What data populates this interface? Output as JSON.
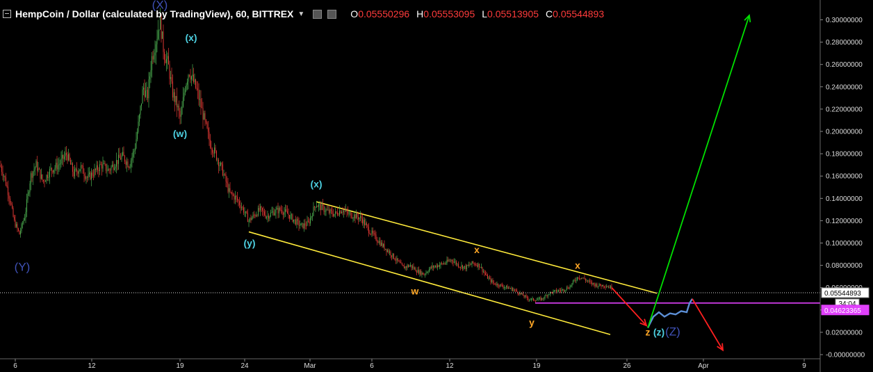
{
  "header": {
    "title": "HempCoin / Dollar (calculated by TradingView), 60, BITTREX",
    "ohlc": [
      {
        "k": "O",
        "v": "0.05550296"
      },
      {
        "k": "H",
        "v": "0.05553095"
      },
      {
        "k": "L",
        "v": "0.05513905"
      },
      {
        "k": "C",
        "v": "0.05544893"
      }
    ]
  },
  "colors": {
    "background": "#000000",
    "up": "#4caf50",
    "down": "#e53935",
    "channel": "#ffeb3b",
    "wave_label_cyan": "#4dd0e1",
    "wave_label_orange": "#ffa726",
    "wave_label_blue": "#3f51b5",
    "projection_up": "#00e000",
    "projection_down": "#ff2020",
    "support_line": "#e040fb",
    "price_path": "#5c8fd6"
  },
  "chart_data": {
    "type": "candlestick",
    "title": "HempCoin / Dollar (calculated by TradingView), 60, BITTREX",
    "y_range": [
      0.0,
      0.31
    ],
    "x_ticks": [
      "6",
      "12",
      "19",
      "24",
      "Mar",
      "6",
      "12",
      "19",
      "26",
      "Apr",
      "9"
    ],
    "y_ticks": [
      "0.30000000",
      "0.28000000",
      "0.26000000",
      "0.24000000",
      "0.22000000",
      "0.20000000",
      "0.18000000",
      "0.16000000",
      "0.14000000",
      "0.12000000",
      "0.10000000",
      "0.08000000",
      "0.06000000",
      "0.04000000",
      "0.02000000",
      "-0.00000000"
    ],
    "price_path": [
      [
        0,
        0.17
      ],
      [
        6,
        0.16
      ],
      [
        14,
        0.14
      ],
      [
        20,
        0.12
      ],
      [
        28,
        0.108
      ],
      [
        36,
        0.125
      ],
      [
        44,
        0.16
      ],
      [
        52,
        0.17
      ],
      [
        62,
        0.155
      ],
      [
        72,
        0.165
      ],
      [
        84,
        0.17
      ],
      [
        96,
        0.18
      ],
      [
        106,
        0.162
      ],
      [
        116,
        0.168
      ],
      [
        126,
        0.158
      ],
      [
        136,
        0.164
      ],
      [
        146,
        0.17
      ],
      [
        156,
        0.165
      ],
      [
        166,
        0.172
      ],
      [
        176,
        0.178
      ],
      [
        186,
        0.17
      ],
      [
        194,
        0.185
      ],
      [
        200,
        0.21
      ],
      [
        206,
        0.24
      ],
      [
        212,
        0.23
      ],
      [
        218,
        0.265
      ],
      [
        224,
        0.28
      ],
      [
        230,
        0.3
      ],
      [
        236,
        0.27
      ],
      [
        242,
        0.26
      ],
      [
        248,
        0.235
      ],
      [
        254,
        0.225
      ],
      [
        260,
        0.21
      ],
      [
        266,
        0.24
      ],
      [
        272,
        0.255
      ],
      [
        278,
        0.245
      ],
      [
        284,
        0.235
      ],
      [
        290,
        0.22
      ],
      [
        296,
        0.205
      ],
      [
        302,
        0.19
      ],
      [
        310,
        0.18
      ],
      [
        320,
        0.165
      ],
      [
        330,
        0.145
      ],
      [
        340,
        0.14
      ],
      [
        350,
        0.13
      ],
      [
        358,
        0.12
      ],
      [
        366,
        0.125
      ],
      [
        374,
        0.13
      ],
      [
        384,
        0.124
      ],
      [
        394,
        0.128
      ],
      [
        404,
        0.13
      ],
      [
        414,
        0.126
      ],
      [
        424,
        0.12
      ],
      [
        434,
        0.115
      ],
      [
        444,
        0.118
      ],
      [
        454,
        0.135
      ],
      [
        462,
        0.132
      ],
      [
        472,
        0.128
      ],
      [
        482,
        0.126
      ],
      [
        492,
        0.13
      ],
      [
        502,
        0.126
      ],
      [
        512,
        0.124
      ],
      [
        520,
        0.122
      ],
      [
        530,
        0.112
      ],
      [
        540,
        0.105
      ],
      [
        550,
        0.098
      ],
      [
        560,
        0.092
      ],
      [
        570,
        0.085
      ],
      [
        580,
        0.078
      ],
      [
        590,
        0.08
      ],
      [
        600,
        0.075
      ],
      [
        610,
        0.072
      ],
      [
        620,
        0.078
      ],
      [
        630,
        0.08
      ],
      [
        640,
        0.082
      ],
      [
        650,
        0.085
      ],
      [
        660,
        0.08
      ],
      [
        670,
        0.078
      ],
      [
        680,
        0.082
      ],
      [
        690,
        0.08
      ],
      [
        700,
        0.07
      ],
      [
        710,
        0.064
      ],
      [
        720,
        0.062
      ],
      [
        730,
        0.06
      ],
      [
        740,
        0.058
      ],
      [
        750,
        0.054
      ],
      [
        760,
        0.05
      ],
      [
        770,
        0.049
      ],
      [
        780,
        0.05
      ],
      [
        790,
        0.055
      ],
      [
        800,
        0.057
      ],
      [
        810,
        0.058
      ],
      [
        820,
        0.061
      ],
      [
        826,
        0.066
      ],
      [
        832,
        0.07
      ],
      [
        840,
        0.068
      ],
      [
        850,
        0.064
      ],
      [
        860,
        0.062
      ],
      [
        870,
        0.062
      ],
      [
        880,
        0.06
      ]
    ],
    "projection_path": [
      [
        932,
        0.024
      ],
      [
        940,
        0.034
      ],
      [
        948,
        0.038
      ],
      [
        956,
        0.034
      ],
      [
        964,
        0.037
      ],
      [
        972,
        0.036
      ],
      [
        980,
        0.039
      ],
      [
        988,
        0.038
      ],
      [
        992,
        0.046
      ],
      [
        996,
        0.05
      ]
    ],
    "last_price": "0.05544893",
    "support_level": "0.04623365",
    "countdown": "34:04",
    "channel": {
      "upper": [
        [
          455,
          0.137
        ],
        [
          945,
          0.055
        ]
      ],
      "lower": [
        [
          358,
          0.11
        ],
        [
          878,
          0.018
        ]
      ]
    },
    "wave_labels": [
      {
        "text": "(X)",
        "x": 230,
        "y": 0.31,
        "color": "wave_label_blue"
      },
      {
        "text": "(x)",
        "x": 275,
        "y": 0.281,
        "color": "wave_label_cyan"
      },
      {
        "text": "(w)",
        "x": 259,
        "y": 0.195,
        "color": "wave_label_cyan"
      },
      {
        "text": "(Y)",
        "x": 32,
        "y": 0.075,
        "color": "wave_label_blue"
      },
      {
        "text": "(x)",
        "x": 455,
        "y": 0.15,
        "color": "wave_label_cyan"
      },
      {
        "text": "(y)",
        "x": 359,
        "y": 0.097,
        "color": "wave_label_cyan"
      },
      {
        "text": "x",
        "x": 686,
        "y": 0.091,
        "color": "wave_label_orange"
      },
      {
        "text": "x",
        "x": 831,
        "y": 0.077,
        "color": "wave_label_orange"
      },
      {
        "text": "w",
        "x": 597,
        "y": 0.054,
        "color": "wave_label_orange"
      },
      {
        "text": "y",
        "x": 765,
        "y": 0.026,
        "color": "wave_label_orange"
      },
      {
        "text": "z",
        "x": 932,
        "y": 0.017,
        "color": "wave_label_orange"
      },
      {
        "text": "(z)",
        "x": 948,
        "y": 0.017,
        "color": "wave_label_cyan"
      },
      {
        "text": "(Z)",
        "x": 968,
        "y": 0.017,
        "color": "wave_label_blue"
      }
    ],
    "projections": [
      {
        "name": "green",
        "from": [
          932,
          0.024
        ],
        "to": [
          1078,
          0.304
        ],
        "color": "projection_up"
      },
      {
        "name": "red1",
        "from": [
          880,
          0.06
        ],
        "to": [
          930,
          0.026
        ],
        "color": "projection_down"
      },
      {
        "name": "red2",
        "from": [
          996,
          0.05
        ],
        "to": [
          1040,
          0.004
        ],
        "color": "projection_down"
      }
    ]
  }
}
